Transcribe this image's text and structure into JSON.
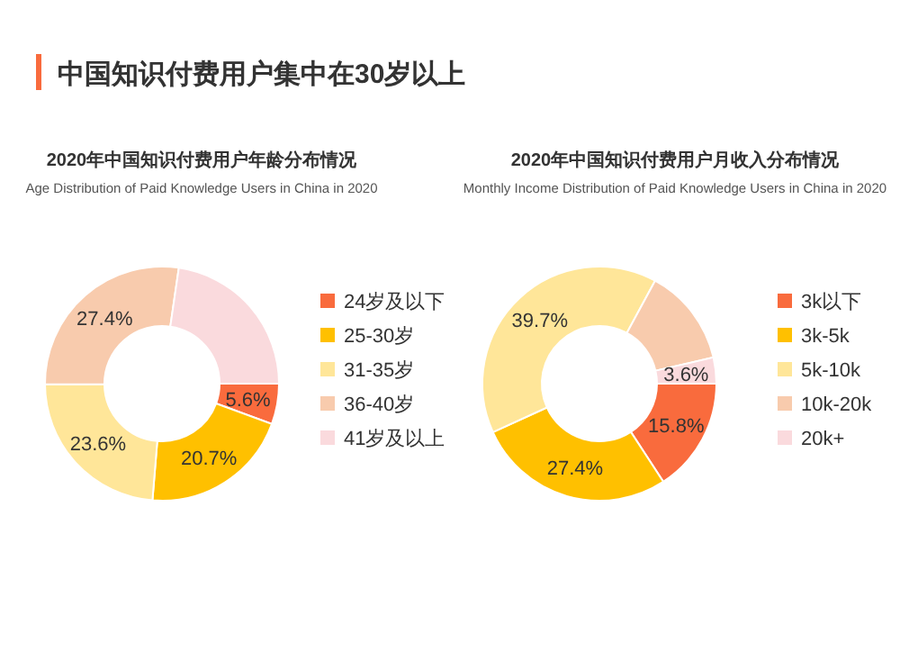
{
  "chart_data": [
    {
      "type": "donut",
      "title": "2020年中国知识付费用户年龄分布情况",
      "subtitle": "Age Distribution of Paid Knowledge Users in China in 2020",
      "annotations": [
        "中国知识付费用户集中在30岁以上"
      ],
      "categories": [
        "24岁及以下",
        "25-30岁",
        "31-35岁",
        "36-40岁",
        "41岁及以上"
      ],
      "values": [
        5.6,
        20.7,
        23.6,
        27.4,
        22.7
      ],
      "value_labels": [
        "5.6%",
        "20.7%",
        "23.6%",
        "27.4%",
        null
      ],
      "colors": [
        "#f96b3d",
        "#ffc000",
        "#ffe699",
        "#f8cbad",
        "#fadadd"
      ],
      "legend": "right"
    },
    {
      "type": "donut",
      "title": "2020年中国知识付费用户月收入分布情况",
      "subtitle": "Monthly Income Distribution of Paid Knowledge Users  in China in 2020",
      "categories": [
        "3k以下",
        "3k-5k",
        "5k-10k",
        "10k-20k",
        "20k+"
      ],
      "values": [
        15.8,
        27.4,
        39.7,
        13.5,
        3.6
      ],
      "value_labels": [
        "15.8%",
        "27.4%",
        "39.7%",
        null,
        "3.6%"
      ],
      "colors": [
        "#f96b3d",
        "#ffc000",
        "#ffe699",
        "#f8cbad",
        "#fadadd"
      ],
      "legend": "right"
    }
  ]
}
